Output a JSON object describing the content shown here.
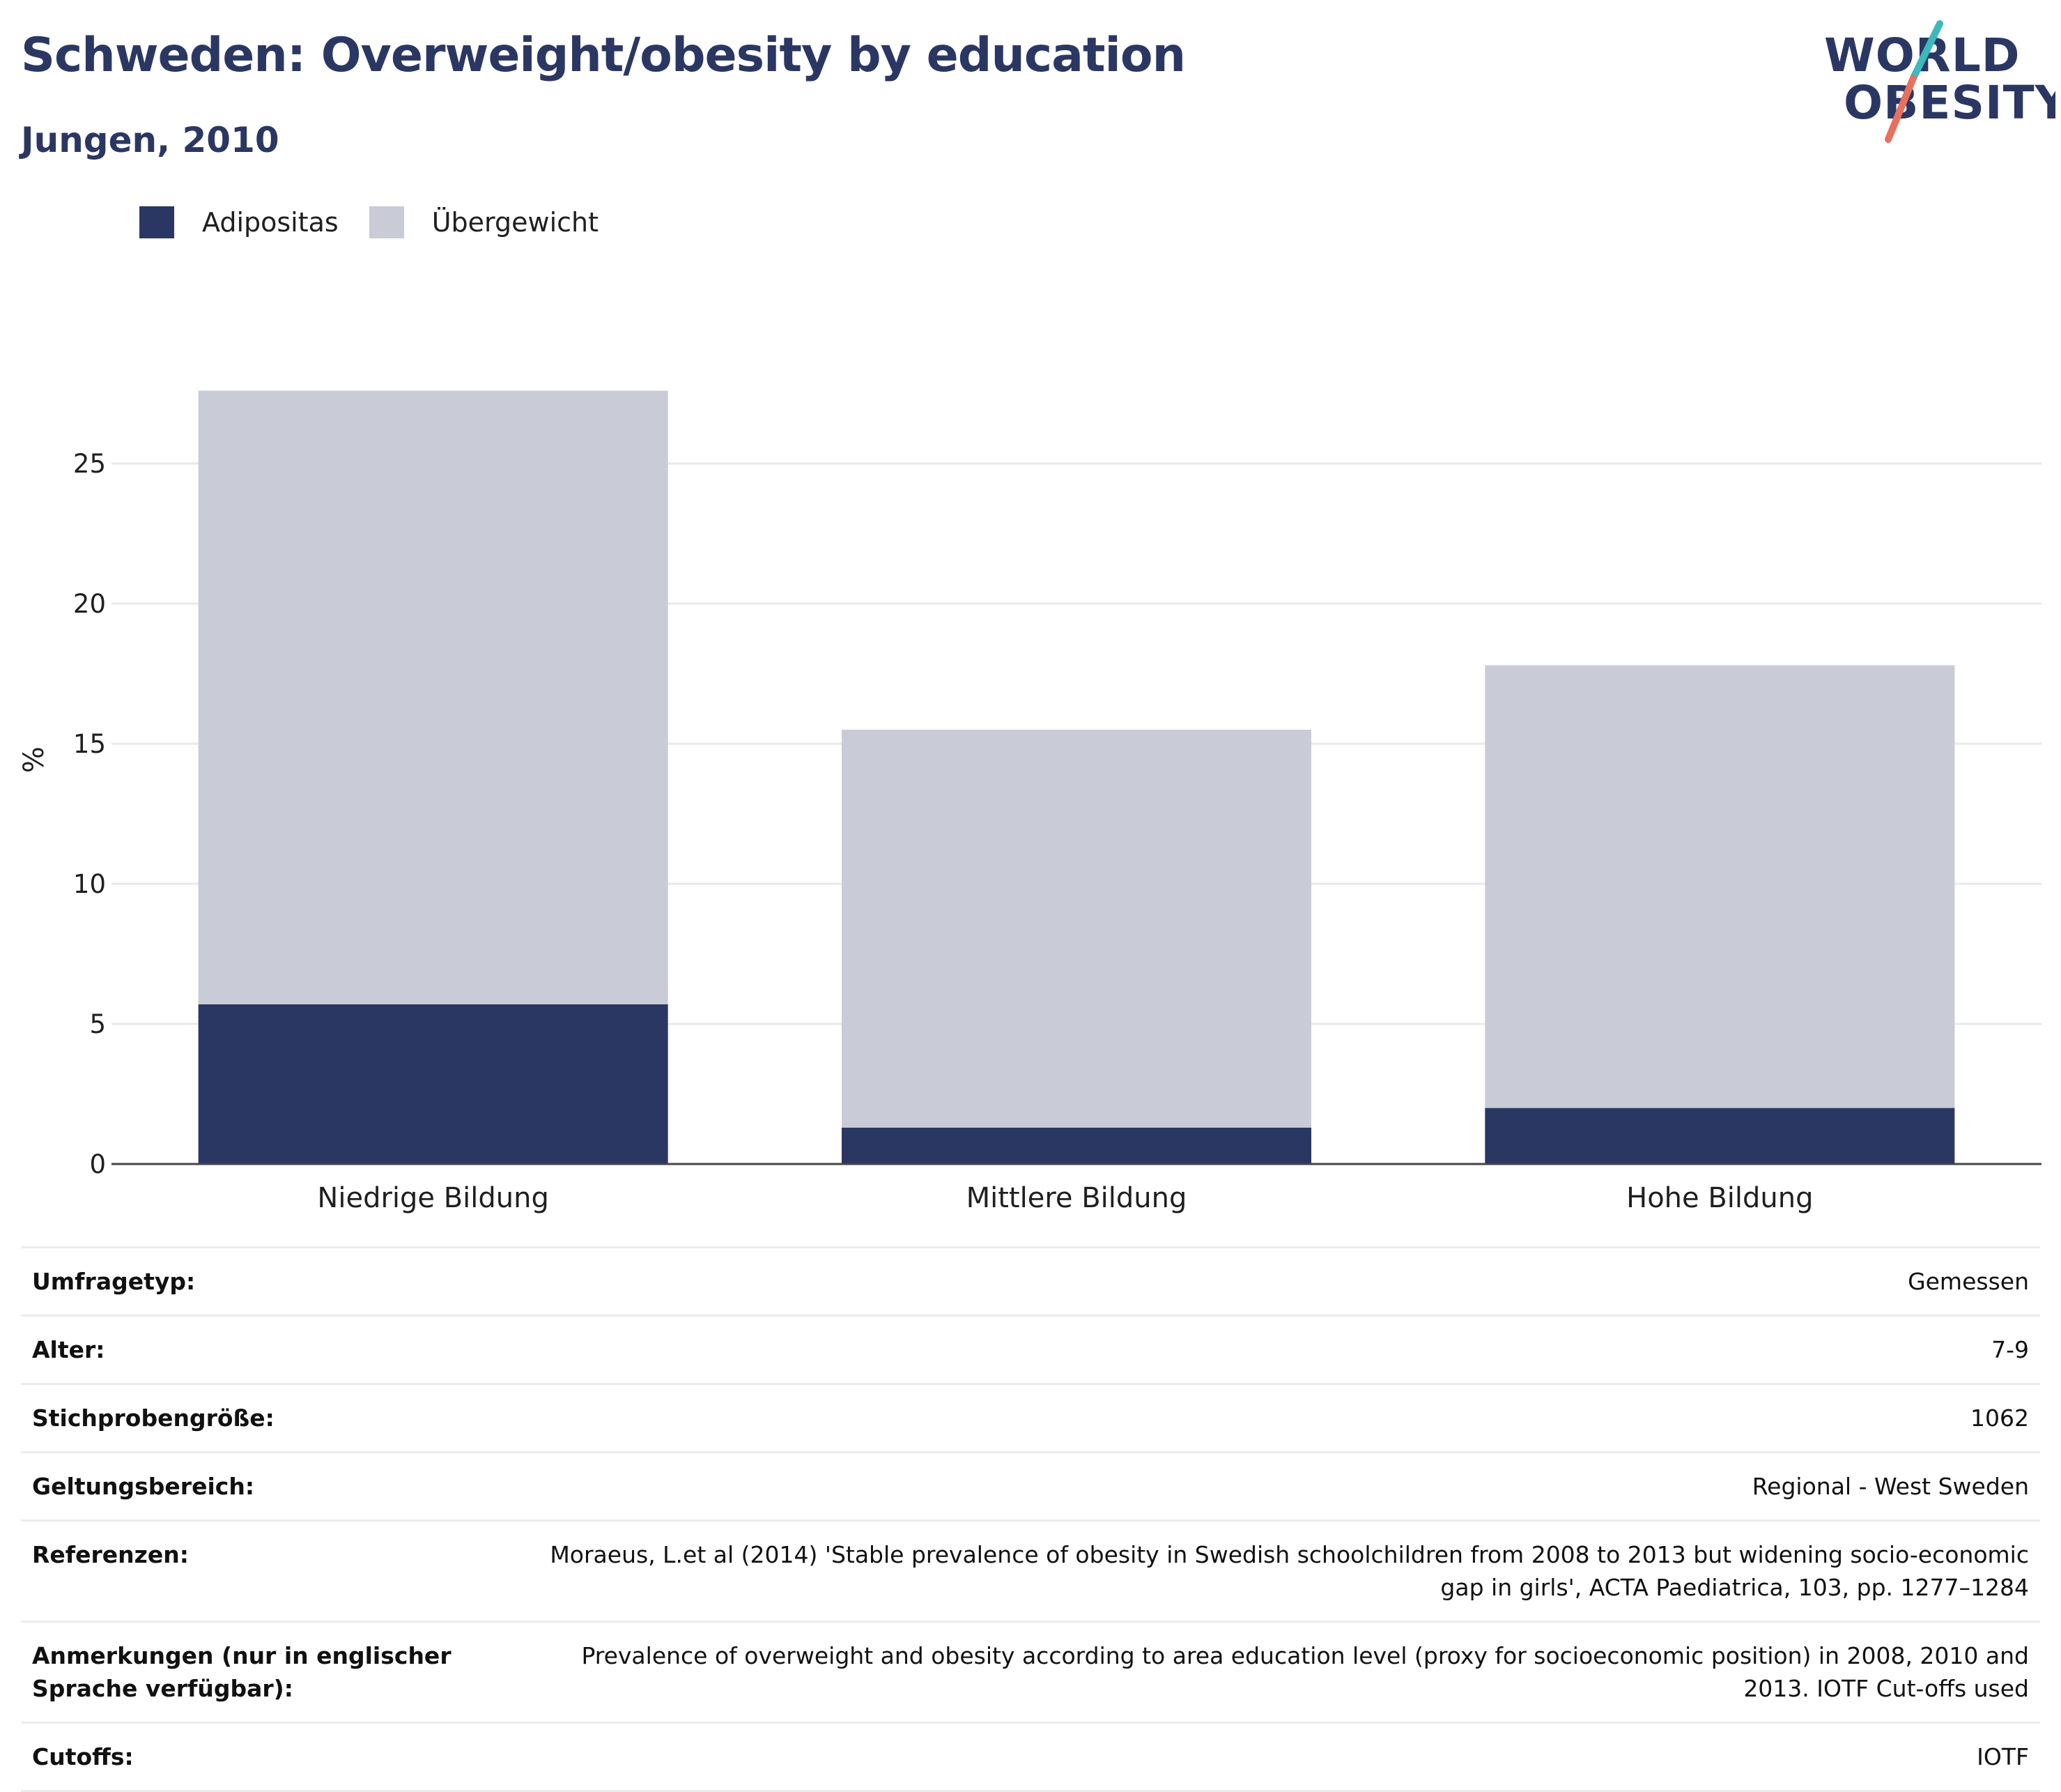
{
  "header": {
    "title": "Schweden: Overweight/obesity by education",
    "subtitle": "Jungen, 2010"
  },
  "logo": {
    "line1": "WORLD",
    "line2": "OBESITY"
  },
  "colors": {
    "adipositas": "#2b3763",
    "uebergewicht": "#c9cbd6",
    "title": "#2b3763",
    "logo_teal": "#3bb9bd",
    "logo_coral": "#e8705e"
  },
  "legend": [
    {
      "label": "Adipositas",
      "color": "#2b3763"
    },
    {
      "label": "Übergewicht",
      "color": "#c9cbd6"
    }
  ],
  "chart_data": {
    "type": "bar",
    "stacked": true,
    "categories": [
      "Niedrige Bildung",
      "Mittlere Bildung",
      "Hohe Bildung"
    ],
    "series": [
      {
        "name": "Adipositas",
        "values": [
          5.7,
          1.3,
          2.0
        ]
      },
      {
        "name": "Übergewicht",
        "values": [
          21.9,
          14.2,
          15.8
        ]
      }
    ],
    "ylabel": "%",
    "yticks": [
      0,
      5,
      10,
      15,
      20,
      25
    ],
    "ylim": [
      0,
      30
    ],
    "grid": true,
    "legend_position": "top-left"
  },
  "meta": [
    {
      "key": "Umfragetyp:",
      "value": "Gemessen"
    },
    {
      "key": "Alter:",
      "value": "7-9"
    },
    {
      "key": "Stichprobengröße:",
      "value": "1062"
    },
    {
      "key": "Geltungsbereich:",
      "value": "Regional - West Sweden"
    },
    {
      "key": "Referenzen:",
      "value": "Moraeus, L.et al (2014) 'Stable prevalence of obesity in Swedish schoolchildren from 2008 to 2013 but widening socio-economic gap in girls', ACTA Paediatrica, 103, pp. 1277–1284"
    },
    {
      "key": "Anmerkungen (nur in englischer Sprache verfügbar):",
      "value": "Prevalence of overweight and obesity according to area education level (proxy for socioeconomic position) in 2008, 2010 and 2013. IOTF Cut-offs used"
    },
    {
      "key": "Cutoffs:",
      "value": "IOTF"
    }
  ]
}
